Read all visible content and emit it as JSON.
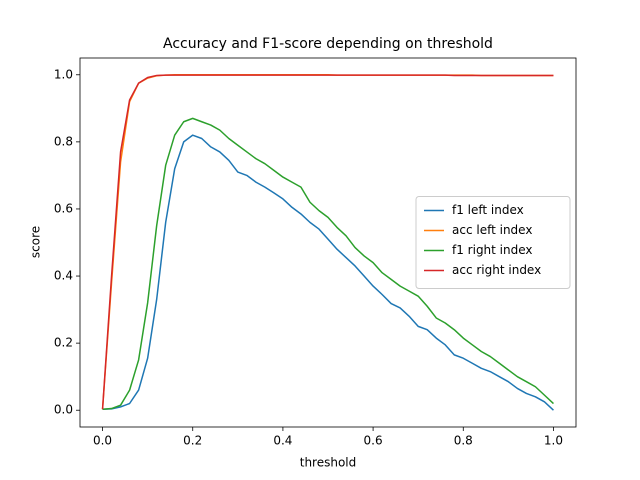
{
  "chart_data": {
    "type": "line",
    "title": "Accuracy and F1-score depending on threshold",
    "x_label": "threshold",
    "y_label": "score",
    "x": [
      0,
      0.02,
      0.04,
      0.06,
      0.08,
      0.1,
      0.12,
      0.14,
      0.16,
      0.18,
      0.2,
      0.22,
      0.24,
      0.26,
      0.28,
      0.3,
      0.32,
      0.34,
      0.36,
      0.38,
      0.4,
      0.42,
      0.44,
      0.46,
      0.48,
      0.5,
      0.52,
      0.54,
      0.56,
      0.58,
      0.6,
      0.62,
      0.64,
      0.66,
      0.68,
      0.7,
      0.72,
      0.74,
      0.76,
      0.78,
      0.8,
      0.82,
      0.84,
      0.86,
      0.88,
      0.9,
      0.92,
      0.94,
      0.96,
      0.98,
      1.0
    ],
    "series": [
      {
        "name": "f1 left index",
        "color": "#1f77b4",
        "values": [
          0.003,
          0.004,
          0.01,
          0.02,
          0.06,
          0.155,
          0.33,
          0.56,
          0.72,
          0.8,
          0.82,
          0.81,
          0.785,
          0.77,
          0.745,
          0.71,
          0.7,
          0.68,
          0.665,
          0.648,
          0.63,
          0.605,
          0.585,
          0.56,
          0.54,
          0.51,
          0.48,
          0.455,
          0.43,
          0.4,
          0.37,
          0.345,
          0.318,
          0.305,
          0.28,
          0.25,
          0.24,
          0.215,
          0.195,
          0.165,
          0.155,
          0.14,
          0.125,
          0.115,
          0.1,
          0.085,
          0.065,
          0.05,
          0.04,
          0.025,
          0.0
        ]
      },
      {
        "name": "acc left index",
        "color": "#ff7f0e",
        "values": [
          0.003,
          0.38,
          0.74,
          0.92,
          0.975,
          0.99,
          0.997,
          0.999,
          1.0,
          1.0,
          1.0,
          1.0,
          1.0,
          1.0,
          1.0,
          1.0,
          1.0,
          1.0,
          1.0,
          1.0,
          1.0,
          1.0,
          1.0,
          1.0,
          1.0,
          1.0,
          0.999,
          0.999,
          0.999,
          0.999,
          0.999,
          0.999,
          0.999,
          0.999,
          0.999,
          0.999,
          0.999,
          0.999,
          0.999,
          0.999,
          0.999,
          0.999,
          0.998,
          0.998,
          0.998,
          0.998,
          0.998,
          0.998,
          0.998,
          0.998,
          0.998
        ]
      },
      {
        "name": "f1 right index",
        "color": "#2ca02c",
        "values": [
          0.003,
          0.005,
          0.015,
          0.06,
          0.15,
          0.32,
          0.55,
          0.73,
          0.82,
          0.86,
          0.87,
          0.86,
          0.85,
          0.835,
          0.81,
          0.79,
          0.77,
          0.75,
          0.735,
          0.715,
          0.695,
          0.68,
          0.665,
          0.62,
          0.595,
          0.575,
          0.545,
          0.52,
          0.485,
          0.46,
          0.44,
          0.41,
          0.39,
          0.37,
          0.355,
          0.34,
          0.31,
          0.275,
          0.26,
          0.24,
          0.215,
          0.195,
          0.175,
          0.16,
          0.14,
          0.12,
          0.1,
          0.085,
          0.07,
          0.045,
          0.02
        ]
      },
      {
        "name": "acc right index",
        "color": "#d62728",
        "values": [
          0.003,
          0.4,
          0.77,
          0.925,
          0.975,
          0.992,
          0.998,
          0.999,
          0.999,
          0.999,
          0.999,
          0.999,
          0.999,
          0.999,
          0.999,
          0.999,
          0.999,
          0.999,
          0.999,
          0.999,
          0.999,
          0.999,
          0.999,
          0.999,
          0.999,
          0.999,
          0.999,
          0.999,
          0.999,
          0.999,
          0.999,
          0.999,
          0.999,
          0.999,
          0.999,
          0.999,
          0.999,
          0.999,
          0.999,
          0.998,
          0.998,
          0.998,
          0.998,
          0.998,
          0.998,
          0.998,
          0.998,
          0.998,
          0.998,
          0.998,
          0.998
        ]
      }
    ],
    "xlim": [
      -0.05,
      1.05
    ],
    "ylim": [
      -0.05,
      1.05
    ],
    "xticks": [
      {
        "value": 0,
        "label": "0.0"
      },
      0.2,
      0.4,
      0.6,
      0.8,
      {
        "value": 1,
        "label": "1.0"
      }
    ],
    "yticks": [
      {
        "value": 0,
        "label": "0.0"
      },
      0.2,
      0.4,
      0.6,
      0.8,
      {
        "value": 1,
        "label": "1.0"
      }
    ],
    "grid": false,
    "legend": "center right"
  }
}
